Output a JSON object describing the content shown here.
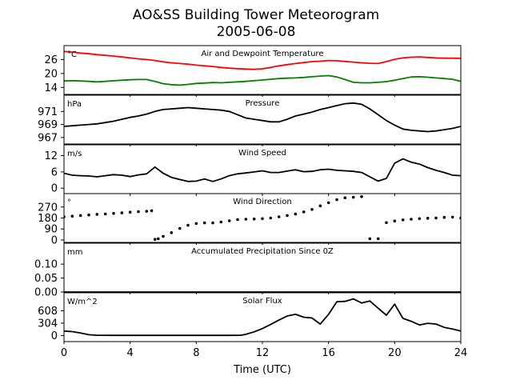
{
  "figure": {
    "title_line1": "AO&SS Building Tower Meteorogram",
    "title_line2": "2005-06-08",
    "xlabel": "Time (UTC)"
  },
  "x_axis": {
    "min": 0,
    "max": 24,
    "ticks": [
      0,
      4,
      8,
      12,
      16,
      20,
      24
    ]
  },
  "chart_data": [
    {
      "type": "line",
      "title": "Air and Dewpoint Temperature",
      "unit": "°C",
      "ylim": [
        11,
        32
      ],
      "yticks": [
        14,
        20,
        26
      ],
      "series": [
        {
          "color": "#ff0000",
          "x": [
            0,
            0.5,
            1,
            1.5,
            2,
            2.5,
            3,
            3.5,
            4,
            4.5,
            5,
            5.5,
            6,
            6.5,
            7,
            7.5,
            8,
            8.5,
            9,
            9.5,
            10,
            10.5,
            11,
            11.5,
            12,
            12.5,
            13,
            13.5,
            14,
            14.5,
            15,
            15.5,
            16,
            16.5,
            17,
            17.5,
            18,
            18.5,
            19,
            19.5,
            20,
            20.5,
            21,
            21.5,
            22,
            22.5,
            23,
            23.5,
            24
          ],
          "y": [
            29.5,
            29.2,
            28.8,
            28.5,
            28.1,
            27.8,
            27.5,
            27.1,
            26.7,
            26.3,
            26.0,
            25.6,
            25.0,
            24.6,
            24.3,
            24.0,
            23.6,
            23.3,
            23.0,
            22.6,
            22.3,
            22.1,
            21.9,
            21.8,
            22.0,
            22.6,
            23.3,
            23.8,
            24.3,
            24.7,
            25.1,
            25.3,
            25.6,
            25.5,
            25.2,
            24.9,
            24.6,
            24.4,
            24.3,
            25.1,
            26.1,
            26.7,
            27.0,
            27.1,
            26.9,
            26.7,
            26.6,
            26.6,
            26.5
          ]
        },
        {
          "color": "#008000",
          "x": [
            0,
            0.5,
            1,
            1.5,
            2,
            2.5,
            3,
            3.5,
            4,
            4.5,
            5,
            5.5,
            6,
            6.5,
            7,
            7.5,
            8,
            8.5,
            9,
            9.5,
            10,
            10.5,
            11,
            11.5,
            12,
            12.5,
            13,
            13.5,
            14,
            14.5,
            15,
            15.5,
            16,
            16.5,
            17,
            17.5,
            18,
            18.5,
            19,
            19.5,
            20,
            20.5,
            21,
            21.5,
            22,
            22.5,
            23,
            23.5,
            24
          ],
          "y": [
            16.8,
            16.9,
            16.8,
            16.6,
            16.4,
            16.6,
            16.9,
            17.1,
            17.3,
            17.4,
            17.4,
            16.6,
            15.6,
            15.2,
            15.0,
            15.3,
            15.7,
            15.9,
            16.1,
            16.0,
            16.2,
            16.4,
            16.6,
            16.9,
            17.2,
            17.5,
            17.8,
            18.0,
            18.1,
            18.3,
            18.6,
            18.9,
            19.1,
            18.5,
            17.4,
            16.2,
            16.0,
            16.0,
            16.2,
            16.5,
            17.1,
            17.8,
            18.5,
            18.6,
            18.4,
            18.1,
            17.8,
            17.5,
            16.6
          ]
        }
      ]
    },
    {
      "type": "line",
      "title": "Pressure",
      "unit": "hPa",
      "ylim": [
        966,
        973.5
      ],
      "yticks": [
        967,
        969,
        971
      ],
      "series": [
        {
          "color": "#000000",
          "x": [
            0,
            0.5,
            1,
            1.5,
            2,
            2.5,
            3,
            3.5,
            4,
            4.5,
            5,
            5.5,
            6,
            6.5,
            7,
            7.5,
            8,
            8.5,
            9,
            9.5,
            10,
            10.5,
            11,
            11.5,
            12,
            12.5,
            13,
            13.5,
            14,
            14.5,
            15,
            15.5,
            16,
            16.5,
            17,
            17.5,
            18,
            18.5,
            19,
            19.5,
            20,
            20.5,
            21,
            21.5,
            22,
            22.5,
            23,
            23.5,
            24
          ],
          "y": [
            968.7,
            968.8,
            968.9,
            969.0,
            969.1,
            969.3,
            969.5,
            969.8,
            970.1,
            970.3,
            970.6,
            971.0,
            971.3,
            971.4,
            971.5,
            971.6,
            971.5,
            971.4,
            971.3,
            971.2,
            971.0,
            970.5,
            970.0,
            969.8,
            969.6,
            969.4,
            969.4,
            969.8,
            970.3,
            970.6,
            970.9,
            971.3,
            971.6,
            971.9,
            972.2,
            972.3,
            972.1,
            971.4,
            970.5,
            969.6,
            968.9,
            968.3,
            968.1,
            968.0,
            967.9,
            968.0,
            968.2,
            968.4,
            968.7
          ]
        }
      ]
    },
    {
      "type": "line",
      "title": "Wind Speed",
      "unit": "m/s",
      "ylim": [
        -2,
        16
      ],
      "yticks": [
        0,
        6,
        12
      ],
      "series": [
        {
          "color": "#000000",
          "x": [
            0,
            0.5,
            1,
            1.5,
            2,
            2.5,
            3,
            3.5,
            4,
            4.5,
            5,
            5.5,
            6,
            6.5,
            7,
            7.5,
            8,
            8.5,
            9,
            9.5,
            10,
            10.5,
            11,
            11.5,
            12,
            12.5,
            13,
            13.5,
            14,
            14.5,
            15,
            15.5,
            16,
            16.5,
            17,
            17.5,
            18,
            18.5,
            19,
            19.5,
            20,
            20.5,
            21,
            21.5,
            22,
            22.5,
            23,
            23.5,
            24
          ],
          "y": [
            5.5,
            4.8,
            4.6,
            4.5,
            4.2,
            4.6,
            5.0,
            4.8,
            4.3,
            4.9,
            5.3,
            7.8,
            5.5,
            4.0,
            3.2,
            2.5,
            2.6,
            3.4,
            2.5,
            3.4,
            4.6,
            5.3,
            5.6,
            6.0,
            6.4,
            5.8,
            5.8,
            6.3,
            6.8,
            6.1,
            6.2,
            6.8,
            7.0,
            6.6,
            6.4,
            6.2,
            5.8,
            4.2,
            2.6,
            3.6,
            9.2,
            10.8,
            9.6,
            8.9,
            7.6,
            6.6,
            5.8,
            4.8,
            4.6
          ]
        }
      ]
    },
    {
      "type": "scatter",
      "title": "Wind Direction",
      "unit": "°",
      "ylim": [
        -20,
        380
      ],
      "yticks": [
        0,
        90,
        180,
        270
      ],
      "series": [
        {
          "color": "#000000",
          "x": [
            0,
            0.5,
            1,
            1.5,
            2,
            2.5,
            3,
            3.5,
            4,
            4.5,
            5,
            5.3,
            5.5,
            5.7,
            6,
            6.5,
            7,
            7.5,
            8,
            8.5,
            9,
            9.5,
            10,
            10.5,
            11,
            11.5,
            12,
            12.5,
            13,
            13.5,
            14,
            14.5,
            15,
            15.5,
            16,
            16.5,
            17,
            17.5,
            18,
            18.5,
            19,
            19.5,
            20,
            20.5,
            21,
            21.5,
            22,
            22.5,
            23,
            23.5,
            24
          ],
          "y": [
            190,
            195,
            200,
            205,
            210,
            213,
            218,
            222,
            228,
            232,
            235,
            240,
            5,
            10,
            30,
            60,
            95,
            120,
            135,
            140,
            140,
            147,
            157,
            167,
            170,
            172,
            175,
            180,
            190,
            200,
            212,
            230,
            250,
            280,
            305,
            330,
            345,
            350,
            355,
            10,
            10,
            142,
            155,
            165,
            170,
            175,
            178,
            180,
            185,
            187,
            180
          ]
        }
      ]
    },
    {
      "type": "line",
      "title": "Accumulated Precipitation Since 0Z",
      "unit": "mm",
      "ylim": [
        0,
        0.175
      ],
      "yticks": [
        0.0,
        0.05,
        0.1
      ],
      "ytick_labels": [
        "0.00",
        "0.05",
        "0.10"
      ],
      "series": [
        {
          "color": "#000000",
          "x": [
            0,
            24
          ],
          "y": [
            0,
            0
          ]
        }
      ]
    },
    {
      "type": "line",
      "title": "Solar Flux",
      "unit": "W/m^2",
      "ylim": [
        -150,
        1050
      ],
      "yticks": [
        0,
        304,
        608
      ],
      "series": [
        {
          "color": "#000000",
          "x": [
            0,
            0.5,
            1,
            1.5,
            2,
            3,
            4,
            5,
            6,
            7,
            8,
            9,
            10,
            10.7,
            11,
            11.5,
            12,
            12.5,
            13,
            13.5,
            14,
            14.5,
            15,
            15.5,
            16,
            16.5,
            17,
            17.5,
            18,
            18.5,
            19,
            19.5,
            20,
            20.5,
            21,
            21.5,
            22,
            22.5,
            23,
            23.5,
            24
          ],
          "y": [
            110,
            95,
            60,
            20,
            5,
            3,
            3,
            3,
            3,
            3,
            3,
            3,
            3,
            5,
            30,
            90,
            170,
            270,
            380,
            480,
            520,
            450,
            430,
            280,
            520,
            830,
            840,
            900,
            800,
            850,
            670,
            500,
            770,
            420,
            350,
            260,
            300,
            280,
            200,
            160,
            110
          ]
        }
      ]
    }
  ]
}
